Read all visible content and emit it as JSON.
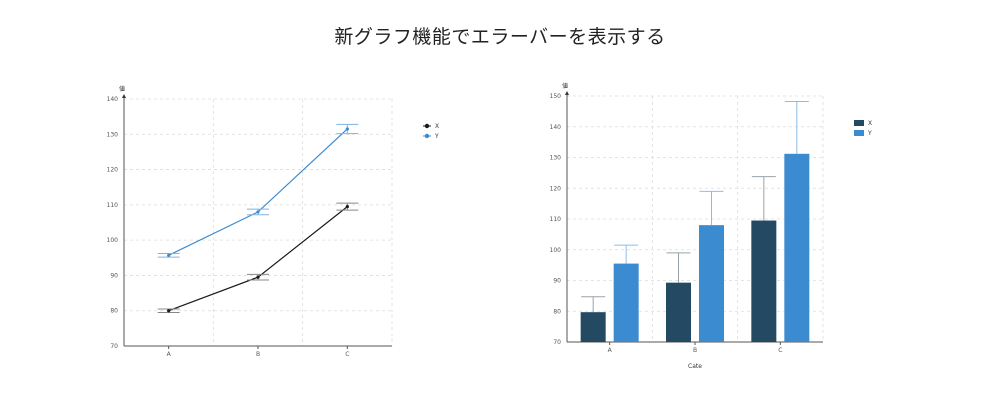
{
  "page": {
    "title": "新グラフ機能でエラーバーを表示する"
  },
  "chart_data": [
    {
      "type": "line",
      "categories": [
        "A",
        "B",
        "C"
      ],
      "series": [
        {
          "name": "X",
          "values": [
            80,
            89.5,
            109.5
          ],
          "error": [
            0.5,
            0.8,
            1.0
          ],
          "color": "#1a1a1a"
        },
        {
          "name": "Y",
          "values": [
            95.7,
            108,
            131.5
          ],
          "error": [
            0.5,
            0.8,
            1.3
          ],
          "color": "#3b8bd1"
        }
      ],
      "ylabel": "値",
      "xlabel": "",
      "ylim": [
        70,
        140
      ],
      "yticks": [
        70,
        80,
        90,
        100,
        110,
        120,
        130,
        140
      ],
      "grid": true,
      "legend": "top-right"
    },
    {
      "type": "bar",
      "categories": [
        "A",
        "B",
        "C"
      ],
      "series": [
        {
          "name": "X",
          "values": [
            79.7,
            89.3,
            109.5
          ],
          "error": [
            5,
            9.7,
            14.3
          ],
          "color": "#244a63"
        },
        {
          "name": "Y",
          "values": [
            95.5,
            108,
            131.2
          ],
          "error": [
            6,
            11,
            17
          ],
          "color": "#3b8bd1"
        }
      ],
      "ylabel": "値",
      "xlabel": "Cate",
      "ylim": [
        70,
        150
      ],
      "yticks": [
        70,
        80,
        90,
        100,
        110,
        120,
        130,
        140,
        150
      ],
      "grid": true,
      "legend": "top-right"
    }
  ]
}
